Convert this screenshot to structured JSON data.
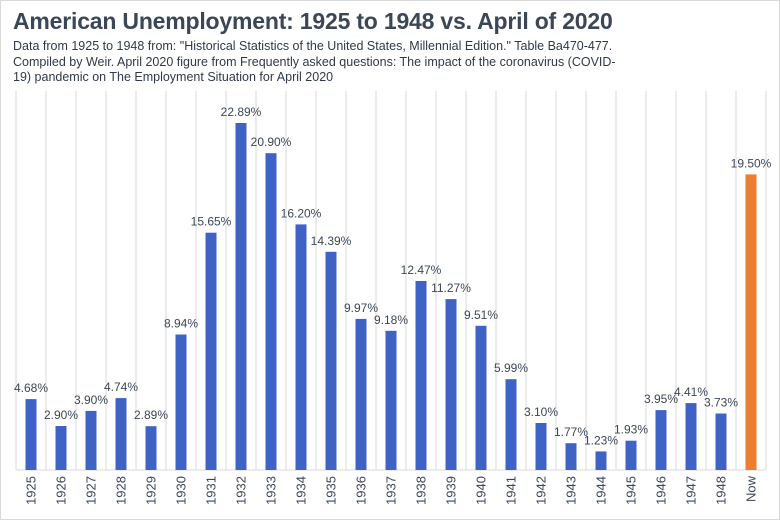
{
  "title": "American Unemployment: 1925 to 1948 vs. April of 2020",
  "subtitle": "Data from 1925 to 1948 from: \"Historical Statistics of the United States, Millennial Edition.\" Table Ba470-477. Compiled by Weir. April 2020 figure from Frequently asked questions: The impact of the coronavirus (COVID-19) pandemic on The Employment Situation for April 2020",
  "colors": {
    "historical_bar": "#3f63c4",
    "highlight_bar": "#ed7d31",
    "gridline": "#d9d9d9"
  },
  "chart_data": {
    "type": "bar",
    "title": "American Unemployment: 1925 to 1948 vs. April of 2020",
    "xlabel": "",
    "ylabel": "",
    "ylim": [
      0,
      25
    ],
    "grid": "vertical",
    "legend": "none",
    "categories": [
      "1925",
      "1926",
      "1927",
      "1928",
      "1929",
      "1930",
      "1931",
      "1932",
      "1933",
      "1934",
      "1935",
      "1936",
      "1937",
      "1938",
      "1939",
      "1940",
      "1941",
      "1942",
      "1943",
      "1944",
      "1945",
      "1946",
      "1947",
      "1948",
      "Now"
    ],
    "values": [
      4.68,
      2.9,
      3.9,
      4.74,
      2.89,
      8.94,
      15.65,
      22.89,
      20.9,
      16.2,
      14.39,
      9.97,
      9.18,
      12.47,
      11.27,
      9.51,
      5.99,
      3.1,
      1.77,
      1.23,
      1.93,
      3.95,
      4.41,
      3.73,
      19.5
    ],
    "data_labels": [
      "4.68%",
      "2.90%",
      "3.90%",
      "4.74%",
      "2.89%",
      "8.94%",
      "15.65%",
      "22.89%",
      "20.90%",
      "16.20%",
      "14.39%",
      "9.97%",
      "9.18%",
      "12.47%",
      "11.27%",
      "9.51%",
      "5.99%",
      "3.10%",
      "1.77%",
      "1.23%",
      "1.93%",
      "3.95%",
      "4.41%",
      "3.73%",
      "19.50%"
    ],
    "highlight_categories": [
      "Now"
    ]
  }
}
